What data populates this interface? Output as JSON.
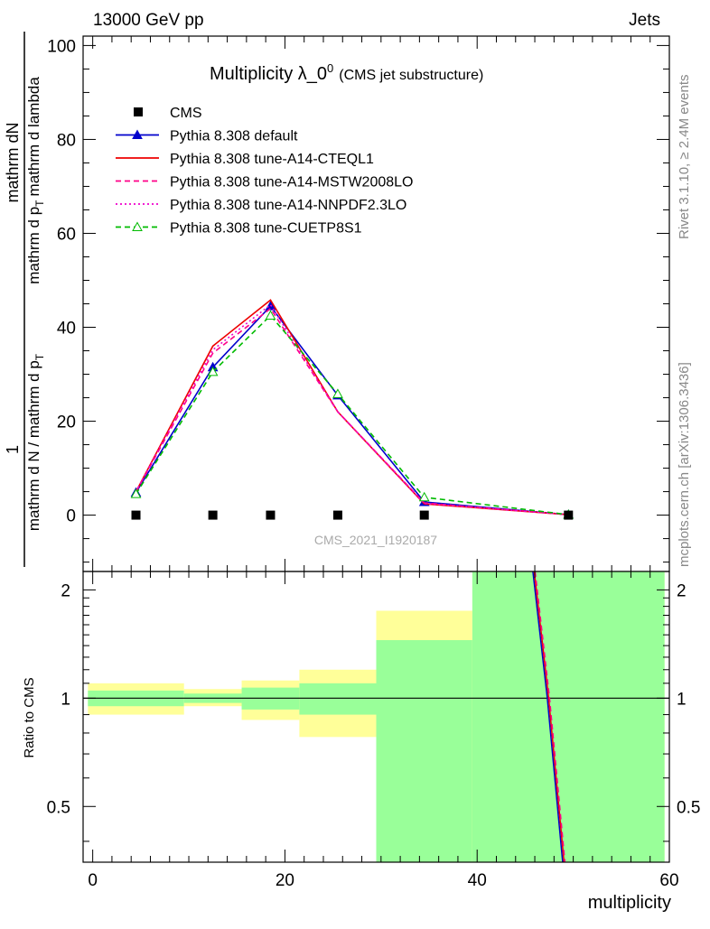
{
  "header": {
    "energy_label": "13000 GeV pp",
    "category_label": "Jets"
  },
  "side_labels": {
    "rivet": "Rivet 3.1.10, ≥ 2.4M events",
    "mcplots": "mcplots.cern.ch [arXiv:1306.3436]"
  },
  "watermark": "CMS_2021_I1920187",
  "chart_data": [
    {
      "type": "line",
      "title": "Multiplicity λ_0",
      "title_sup": "0",
      "subtitle": "(CMS jet substructure)",
      "ylabel_numerator_top": "1",
      "ylabel_numerator": "mathrm dN",
      "ylabel_denominator": "mathrm d N / mathrm d p",
      "ylabel_denominator_sub": "T",
      "ylabel_main": "mathrm d p",
      "ylabel_main_sub": "T",
      "ylabel_main_rest": "mathrm d lambda",
      "xlim": [
        -1,
        60
      ],
      "ylim": [
        -12,
        102
      ],
      "yticks": [
        0,
        20,
        40,
        60,
        80,
        100
      ],
      "legend_position": "top-left",
      "data_series": {
        "name": "CMS",
        "x": [
          4.5,
          12.5,
          18.5,
          25.5,
          34.5,
          49.5
        ],
        "y": [
          0,
          0,
          0,
          0,
          0,
          0
        ]
      },
      "series": [
        {
          "name": "Pythia 8.308 default",
          "color": "#0000cc",
          "style": "solid",
          "marker": "filled-triangle",
          "x": [
            4.5,
            12.5,
            18.5,
            25.5,
            34.5,
            49.5
          ],
          "y": [
            4.8,
            31.5,
            44.5,
            25.5,
            2.8,
            0.1
          ]
        },
        {
          "name": "Pythia 8.308 tune-A14-CTEQL1",
          "color": "#ee0000",
          "style": "solid",
          "marker": "none",
          "x": [
            4.5,
            12.5,
            18.5,
            25.5,
            34.5,
            49.5
          ],
          "y": [
            5.0,
            36.0,
            45.8,
            22.0,
            2.4,
            0.1
          ]
        },
        {
          "name": "Pythia 8.308 tune-A14-MSTW2008LO",
          "color": "#ff0088",
          "style": "dashed",
          "marker": "none",
          "x": [
            4.5,
            12.5,
            18.5,
            25.5,
            34.5,
            49.5
          ],
          "y": [
            5.0,
            34.5,
            44.0,
            22.0,
            2.6,
            0.1
          ]
        },
        {
          "name": "Pythia 8.308 tune-A14-NNPDF2.3LO",
          "color": "#ee00cc",
          "style": "dotted",
          "marker": "none",
          "x": [
            4.5,
            12.5,
            18.5,
            25.5,
            34.5,
            49.5
          ],
          "y": [
            5.0,
            35.2,
            44.8,
            22.0,
            2.5,
            0.1
          ]
        },
        {
          "name": "Pythia 8.308 tune-CUETP8S1",
          "color": "#00bb00",
          "style": "dashed",
          "marker": "open-triangle",
          "x": [
            4.5,
            12.5,
            18.5,
            25.5,
            34.5,
            49.5
          ],
          "y": [
            4.5,
            30.5,
            42.5,
            25.8,
            3.8,
            0.1
          ]
        }
      ]
    },
    {
      "type": "area",
      "ylabel": "Ratio to CMS",
      "xlabel": "multiplicity",
      "xlim": [
        -1,
        60
      ],
      "ylim": [
        0.35,
        2.25
      ],
      "xticks": [
        0,
        20,
        40,
        60
      ],
      "yticks": [
        0.5,
        1,
        2
      ],
      "reference_line": 1,
      "bands": [
        {
          "xlo": -0.5,
          "xhi": 9.5,
          "stat_lo": 0.95,
          "stat_hi": 1.05,
          "tot_lo": 0.9,
          "tot_hi": 1.1
        },
        {
          "xlo": 9.5,
          "xhi": 15.5,
          "stat_lo": 0.97,
          "stat_hi": 1.03,
          "tot_lo": 0.95,
          "tot_hi": 1.06
        },
        {
          "xlo": 15.5,
          "xhi": 21.5,
          "stat_lo": 0.93,
          "stat_hi": 1.07,
          "tot_lo": 0.87,
          "tot_hi": 1.12
        },
        {
          "xlo": 21.5,
          "xhi": 29.5,
          "stat_lo": 0.9,
          "stat_hi": 1.1,
          "tot_lo": 0.78,
          "tot_hi": 1.2
        },
        {
          "xlo": 29.5,
          "xhi": 39.5,
          "stat_lo": 0.35,
          "stat_hi": 1.45,
          "tot_lo": 0.35,
          "tot_hi": 1.75
        },
        {
          "xlo": 39.5,
          "xhi": 59.5,
          "stat_lo": 0.35,
          "stat_hi": 2.25,
          "tot_lo": 0.35,
          "tot_hi": 2.25
        }
      ],
      "ratio_line": {
        "x": [
          45.8,
          47.3,
          48.9
        ],
        "y": [
          2.25,
          1.0,
          0.35
        ]
      }
    }
  ]
}
